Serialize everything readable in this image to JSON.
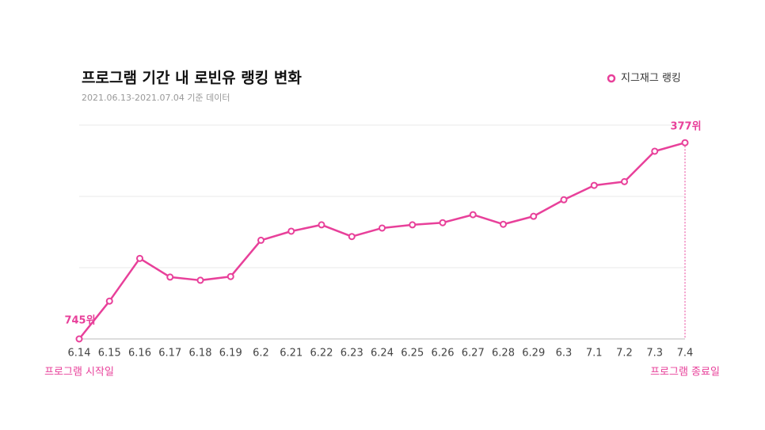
{
  "chart_data": {
    "type": "line",
    "title": "프로그램 기간 내 로빈유 랭킹 변화",
    "subtitle": "2021.06.13-2021.07.04 기준 데이터",
    "categories": [
      "6.14",
      "6.15",
      "6.16",
      "6.17",
      "6.18",
      "6.19",
      "6.2",
      "6.21",
      "6.22",
      "6.23",
      "6.24",
      "6.25",
      "6.26",
      "6.27",
      "6.28",
      "6.29",
      "6.3",
      "7.1",
      "7.2",
      "7.3",
      "7.4"
    ],
    "series": [
      {
        "name": "지그재그 랭킹",
        "color": "#e8409a",
        "values": [
          745,
          674,
          594,
          629,
          635,
          628,
          560,
          543,
          531,
          553,
          537,
          531,
          527,
          512,
          530,
          515,
          484,
          457,
          450,
          393,
          377
        ],
        "value_labels": [
          "745위",
          null,
          null,
          null,
          null,
          null,
          null,
          null,
          null,
          null,
          null,
          null,
          null,
          null,
          null,
          null,
          null,
          null,
          null,
          null,
          "377위"
        ]
      }
    ],
    "ylim": [
      745,
      344
    ],
    "grid": true,
    "legend": "top-right",
    "annotations": [
      "프로그램 시작일",
      "프로그램 종료일"
    ]
  }
}
